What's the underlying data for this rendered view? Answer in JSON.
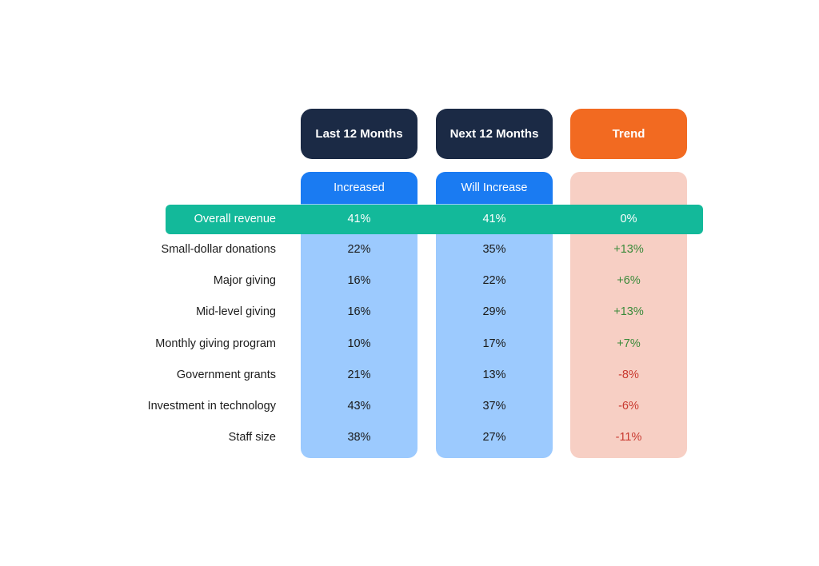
{
  "headers": {
    "last": "Last 12 Months",
    "next": "Next 12 Months",
    "trend": "Trend"
  },
  "subheaders": {
    "last": "Increased",
    "next": "Will Increase"
  },
  "colors": {
    "header_dark": "#1b2a45",
    "header_trend": "#f26a21",
    "subhead_blue": "#1a7bf2",
    "panel_blue": "#9ccafe",
    "panel_trend": "#f7cfc4",
    "highlight": "#13b99a",
    "positive": "#3a8a3a",
    "negative": "#c93a30"
  },
  "chart_data": {
    "type": "table",
    "columns": [
      "Last 12 Months (Increased)",
      "Next 12 Months (Will Increase)",
      "Trend"
    ],
    "highlight_row": {
      "label": "Overall revenue",
      "last": "41%",
      "next": "41%",
      "trend": "0%"
    },
    "rows": [
      {
        "label": "Small-dollar donations",
        "last": "22%",
        "next": "35%",
        "trend": "+13%",
        "trend_value": 13
      },
      {
        "label": "Major giving",
        "last": "16%",
        "next": "22%",
        "trend": "+6%",
        "trend_value": 6
      },
      {
        "label": "Mid-level giving",
        "last": "16%",
        "next": "29%",
        "trend": "+13%",
        "trend_value": 13
      },
      {
        "label": "Monthly giving program",
        "last": "10%",
        "next": "17%",
        "trend": "+7%",
        "trend_value": 7
      },
      {
        "label": "Government grants",
        "last": "21%",
        "next": "13%",
        "trend": "-8%",
        "trend_value": -8
      },
      {
        "label": "Investment in technology",
        "last": "43%",
        "next": "37%",
        "trend": "-6%",
        "trend_value": -6
      },
      {
        "label": "Staff size",
        "last": "38%",
        "next": "27%",
        "trend": "-11%",
        "trend_value": -11
      }
    ]
  }
}
